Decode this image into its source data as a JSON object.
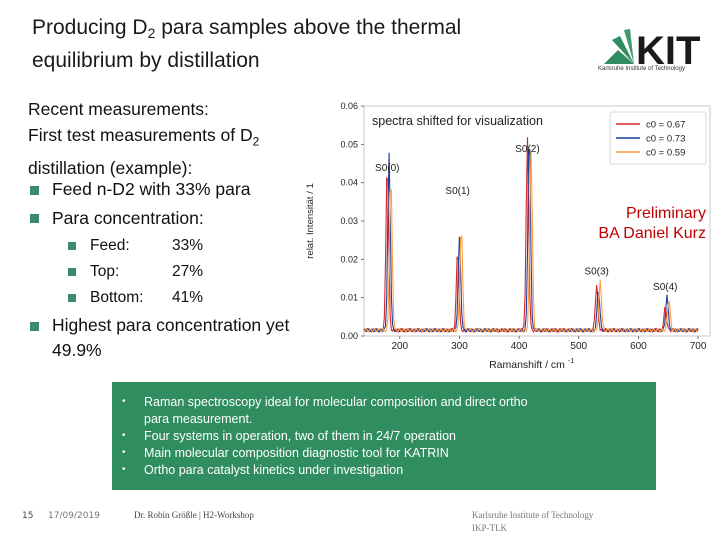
{
  "slide": {
    "title_line1_pre": "Producing D",
    "title_sub": "2",
    "title_line1_post": " para samples above the thermal",
    "title_line2": "equilibrium by distillation",
    "logo_text": "KIT",
    "logo_subtitle": "Karlsruhe Institute of Technology"
  },
  "left": {
    "line1": "Recent measurements:",
    "line2_pre": "First test measurements of D",
    "line2_sub": "2",
    "line3": "distillation (example):",
    "bullet1": "Feed n-D2 with 33% para",
    "bullet2": "Para concentration:",
    "sub_rows": [
      {
        "label": "Feed:",
        "value": "33%"
      },
      {
        "label": "Top:",
        "value": "27%"
      },
      {
        "label": "Bottom:",
        "value": "41%"
      }
    ],
    "bullet3_line1": "Highest para concentration yet",
    "bullet3_line2": "49.9%"
  },
  "prelim": {
    "line1": "Preliminary",
    "line2": "BA Daniel Kurz"
  },
  "chart_data": {
    "type": "line",
    "title": "spectra shifted for visualization",
    "xlabel": "Ramanshift / cm",
    "xlabel_sup": "-1",
    "ylabel": "relat. Intensität / 1",
    "xlim": [
      140,
      720
    ],
    "ylim": [
      0,
      0.06
    ],
    "xticks": [
      "200",
      "300",
      "400",
      "500",
      "600",
      "700"
    ],
    "yticks": [
      "0.00",
      "0.01",
      "0.02",
      "0.03",
      "0.04",
      "0.05",
      "0.06"
    ],
    "peak_labels": [
      {
        "text": "S0(0)",
        "x": 179,
        "y": 0.043
      },
      {
        "text": "S0(1)",
        "x": 297,
        "y": 0.037
      },
      {
        "text": "S0(2)",
        "x": 414,
        "y": 0.048
      },
      {
        "text": "S0(3)",
        "x": 530,
        "y": 0.016
      },
      {
        "text": "S0(4)",
        "x": 645,
        "y": 0.012
      }
    ],
    "legend_placement": "top-right",
    "series": [
      {
        "name": "c0 = 0.67",
        "color": "#d62728",
        "offset": 0,
        "peaks": [
          [
            179,
            0.044
          ],
          [
            297,
            0.021
          ],
          [
            414,
            0.05
          ],
          [
            530,
            0.012
          ],
          [
            645,
            0.006
          ]
        ]
      },
      {
        "name": "c0 = 0.73",
        "color": "#1f3f99",
        "offset": 3,
        "peaks": [
          [
            179,
            0.046
          ],
          [
            297,
            0.024
          ],
          [
            414,
            0.052
          ],
          [
            530,
            0.011
          ],
          [
            645,
            0.009
          ]
        ]
      },
      {
        "name": "c0 = 0.59",
        "color": "#ff9f40",
        "offset": 6,
        "peaks": [
          [
            179,
            0.04
          ],
          [
            297,
            0.027
          ],
          [
            414,
            0.047
          ],
          [
            530,
            0.013
          ],
          [
            645,
            0.008
          ]
        ]
      }
    ]
  },
  "greenbox": {
    "items": [
      "Raman spectroscopy ideal for molecular composition and direct ortho",
      "para measurement.",
      "Four systems in operation, two of them in 24/7 operation",
      "Main molecular composition diagnostic tool for KATRIN",
      "Ortho para catalyst kinetics under investigation"
    ]
  },
  "footer": {
    "page": "15",
    "date": "17/09/2019",
    "author": "Dr. Robin Größle | H2-Workshop",
    "inst_line1": "Karlsruhe Institute of Technology",
    "inst_line2": "IKP-TLK"
  }
}
